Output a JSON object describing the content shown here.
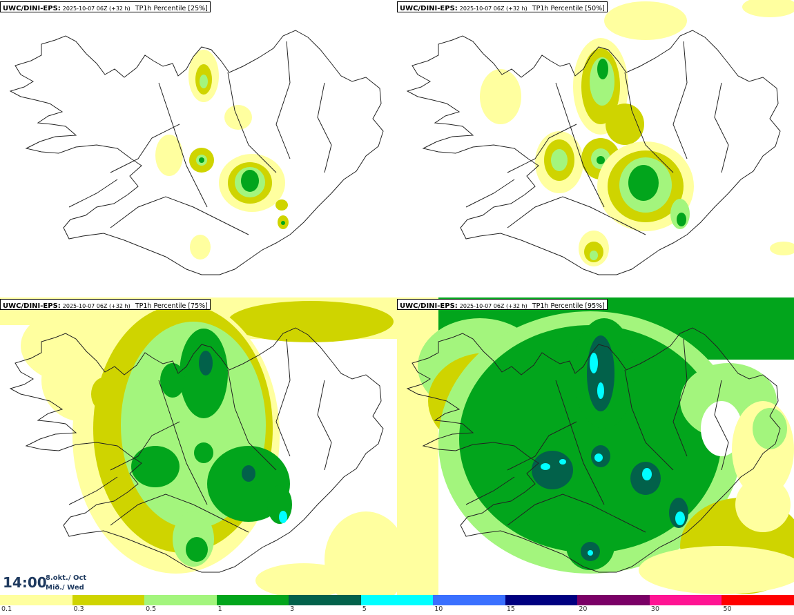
{
  "panels": [
    {
      "model": "UWC/DINI-EPS:",
      "run": "2025-10-07 06Z (+32 h)",
      "variable": "TP1h Percentile",
      "percentile": "[25%]"
    },
    {
      "model": "UWC/DINI-EPS:",
      "run": "2025-10-07 06Z (+32 h)",
      "variable": "TP1h Percentile",
      "percentile": "[50%]"
    },
    {
      "model": "UWC/DINI-EPS:",
      "run": "2025-10-07 06Z (+32 h)",
      "variable": "TP1h Percentile",
      "percentile": "[75%]"
    },
    {
      "model": "UWC/DINI-EPS:",
      "run": "2025-10-07 06Z (+32 h)",
      "variable": "TP1h Percentile",
      "percentile": "[95%]"
    }
  ],
  "valid_time": {
    "time": "14:00",
    "date": "8.okt./ Oct",
    "weekday": "Mið./ Wed"
  },
  "legend": {
    "levels": [
      "0.1",
      "0.3",
      "0.5",
      "1",
      "3",
      "5",
      "10",
      "15",
      "20",
      "30",
      "50"
    ],
    "colors": [
      "#ffff9f",
      "#cfd400",
      "#a3f57d",
      "#02a51c",
      "#02614a",
      "#00ffff",
      "#3a70ff",
      "#000080",
      "#7a0066",
      "#ff1493",
      "#ff0000"
    ]
  },
  "map_colors": {
    "land_outline": "#222222"
  }
}
